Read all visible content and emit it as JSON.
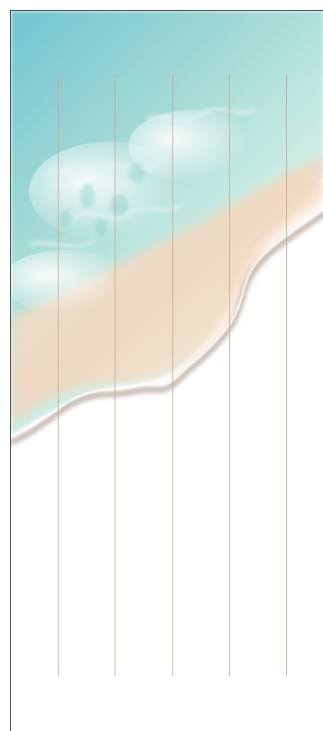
{
  "scene": {
    "background": "beach-watercolor",
    "colors": {
      "sea_top": "#7fc9d6",
      "sea_mid": "#a9dcd9",
      "foam": "#f4f7f6",
      "sand": "#f6dcc4",
      "shore_shadow": "#b7a89c",
      "paper": "#ffffff",
      "guide_line": "#c9a58f",
      "frame_border": "#3a3a3a"
    },
    "guide_line_count": 5
  }
}
